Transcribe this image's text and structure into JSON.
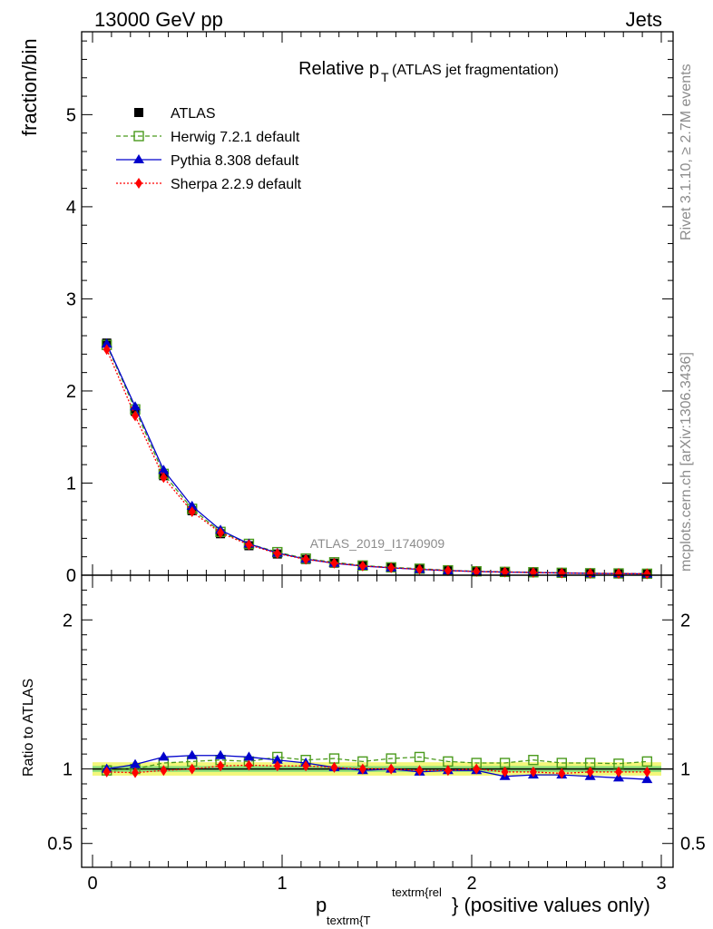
{
  "header": {
    "left": "13000 GeV pp",
    "right": "Jets"
  },
  "side_labels": {
    "rivet": "Rivet 3.1.10, ≥ 2.7M events",
    "mcplots": "mcplots.cern.ch [arXiv:1306.3436]"
  },
  "analysis_id": "ATLAS_2019_I1740909",
  "colors": {
    "atlas": "#000000",
    "herwig": "#4a9a1c",
    "pythia": "#0000cc",
    "sherpa": "#ff0000",
    "band_outer": "#f3f77a",
    "band_inner": "#8fe07a"
  },
  "chart_data": [
    {
      "type": "line",
      "title_main": "Relative p",
      "title_sub": "T",
      "title_rest": "(ATLAS jet fragmentation)",
      "ylabel": "fraction/bin",
      "ylim": [
        0,
        5.9
      ],
      "y_ticks": [
        0,
        1,
        2,
        3,
        4,
        5
      ],
      "x_range": [
        -0.05,
        3.05
      ],
      "x": [
        0.075,
        0.225,
        0.375,
        0.525,
        0.675,
        0.825,
        0.975,
        1.125,
        1.275,
        1.425,
        1.575,
        1.725,
        1.875,
        2.025,
        2.175,
        2.325,
        2.475,
        2.625,
        2.775,
        2.925
      ],
      "legend_position": "top-left",
      "series": [
        {
          "name": "ATLAS",
          "marker": "square-filled",
          "values": [
            2.52,
            1.78,
            1.08,
            0.7,
            0.45,
            0.32,
            0.23,
            0.17,
            0.13,
            0.1,
            0.08,
            0.065,
            0.05,
            0.04,
            0.035,
            0.03,
            0.025,
            0.02,
            0.018,
            0.015
          ]
        },
        {
          "name": "Herwig 7.2.1 default",
          "marker": "square-open",
          "dash": "dashed",
          "values": [
            2.5,
            1.8,
            1.1,
            0.72,
            0.47,
            0.34,
            0.25,
            0.18,
            0.14,
            0.105,
            0.085,
            0.07,
            0.053,
            0.042,
            0.036,
            0.032,
            0.026,
            0.021,
            0.019,
            0.016
          ]
        },
        {
          "name": "Pythia 8.308 default",
          "marker": "triangle-filled",
          "dash": "solid",
          "values": [
            2.51,
            1.83,
            1.14,
            0.75,
            0.49,
            0.34,
            0.24,
            0.175,
            0.13,
            0.099,
            0.08,
            0.063,
            0.05,
            0.04,
            0.033,
            0.029,
            0.024,
            0.019,
            0.017,
            0.014
          ]
        },
        {
          "name": "Sherpa 2.2.9 default",
          "marker": "diamond-filled",
          "dash": "dotted",
          "values": [
            2.45,
            1.73,
            1.06,
            0.69,
            0.46,
            0.33,
            0.235,
            0.172,
            0.131,
            0.1,
            0.08,
            0.064,
            0.05,
            0.04,
            0.034,
            0.029,
            0.024,
            0.02,
            0.018,
            0.015
          ]
        }
      ]
    },
    {
      "type": "line",
      "ylabel": "Ratio to ATLAS",
      "xlabel_main": "p",
      "xlabel_sub": "textrm{T",
      "xlabel_sup": "textrm{rel",
      "xlabel_rest": "} (positive values only)",
      "ylim": [
        0.34,
        2.3
      ],
      "y_ticks": [
        0.5,
        1,
        2
      ],
      "y_tick_labels": [
        "0.5",
        "1",
        "2"
      ],
      "x_ticks": [
        0,
        1,
        2,
        3
      ],
      "x_range": [
        -0.05,
        3.05
      ],
      "x": [
        0.075,
        0.225,
        0.375,
        0.525,
        0.675,
        0.825,
        0.975,
        1.125,
        1.275,
        1.425,
        1.575,
        1.725,
        1.875,
        2.025,
        2.175,
        2.325,
        2.475,
        2.625,
        2.775,
        2.925
      ],
      "band_outer_halfwidth": 0.045,
      "band_inner_halfwidth": 0.02,
      "series": [
        {
          "name": "Herwig 7.2.1 default",
          "values": [
            0.99,
            1.0,
            1.04,
            1.05,
            1.06,
            1.05,
            1.08,
            1.06,
            1.07,
            1.05,
            1.07,
            1.08,
            1.05,
            1.04,
            1.04,
            1.06,
            1.04,
            1.04,
            1.035,
            1.05
          ]
        },
        {
          "name": "Pythia 8.308 default",
          "values": [
            1.0,
            1.03,
            1.08,
            1.09,
            1.09,
            1.08,
            1.06,
            1.04,
            1.01,
            0.99,
            1.0,
            0.98,
            0.99,
            0.99,
            0.95,
            0.96,
            0.96,
            0.95,
            0.94,
            0.93
          ]
        },
        {
          "name": "Sherpa 2.2.9 default",
          "values": [
            0.98,
            0.975,
            0.99,
            1.0,
            1.02,
            1.025,
            1.02,
            1.02,
            1.01,
            1.0,
            1.0,
            0.99,
            0.99,
            1.0,
            0.98,
            0.98,
            0.97,
            0.98,
            0.98,
            0.98
          ]
        }
      ]
    }
  ]
}
